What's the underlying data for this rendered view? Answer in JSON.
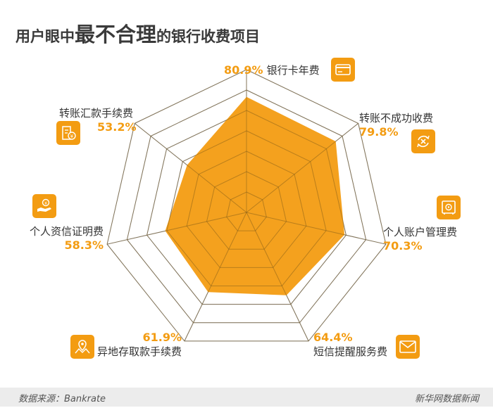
{
  "title": {
    "part1": "用户眼中",
    "part2": "最不合理",
    "part3": "的银行收费项目"
  },
  "chart_data": {
    "type": "radar",
    "axes": [
      "银行卡年费",
      "转账不成功收费",
      "个人账户管理费",
      "短信提醒服务费",
      "异地存取款手续费",
      "个人资信证明费",
      "转账汇款手续费"
    ],
    "values": [
      80.9,
      79.8,
      70.3,
      64.4,
      61.9,
      58.3,
      53.2
    ],
    "value_labels": [
      "80.9%",
      "79.8%",
      "70.3%",
      "64.4%",
      "61.9%",
      "58.3%",
      "53.2%"
    ],
    "rlim": [
      0,
      100
    ],
    "grid_rings": 7,
    "fill_color": "#f39c12",
    "grid_color": "#8a8a8a",
    "icons": [
      "credit-card-icon",
      "transfer-failed-icon",
      "safe-icon",
      "envelope-icon",
      "map-location-icon",
      "money-hand-icon",
      "invoice-icon"
    ]
  },
  "footer": {
    "source": "数据来源：Bankrate",
    "brand": "新华网数据新闻"
  }
}
